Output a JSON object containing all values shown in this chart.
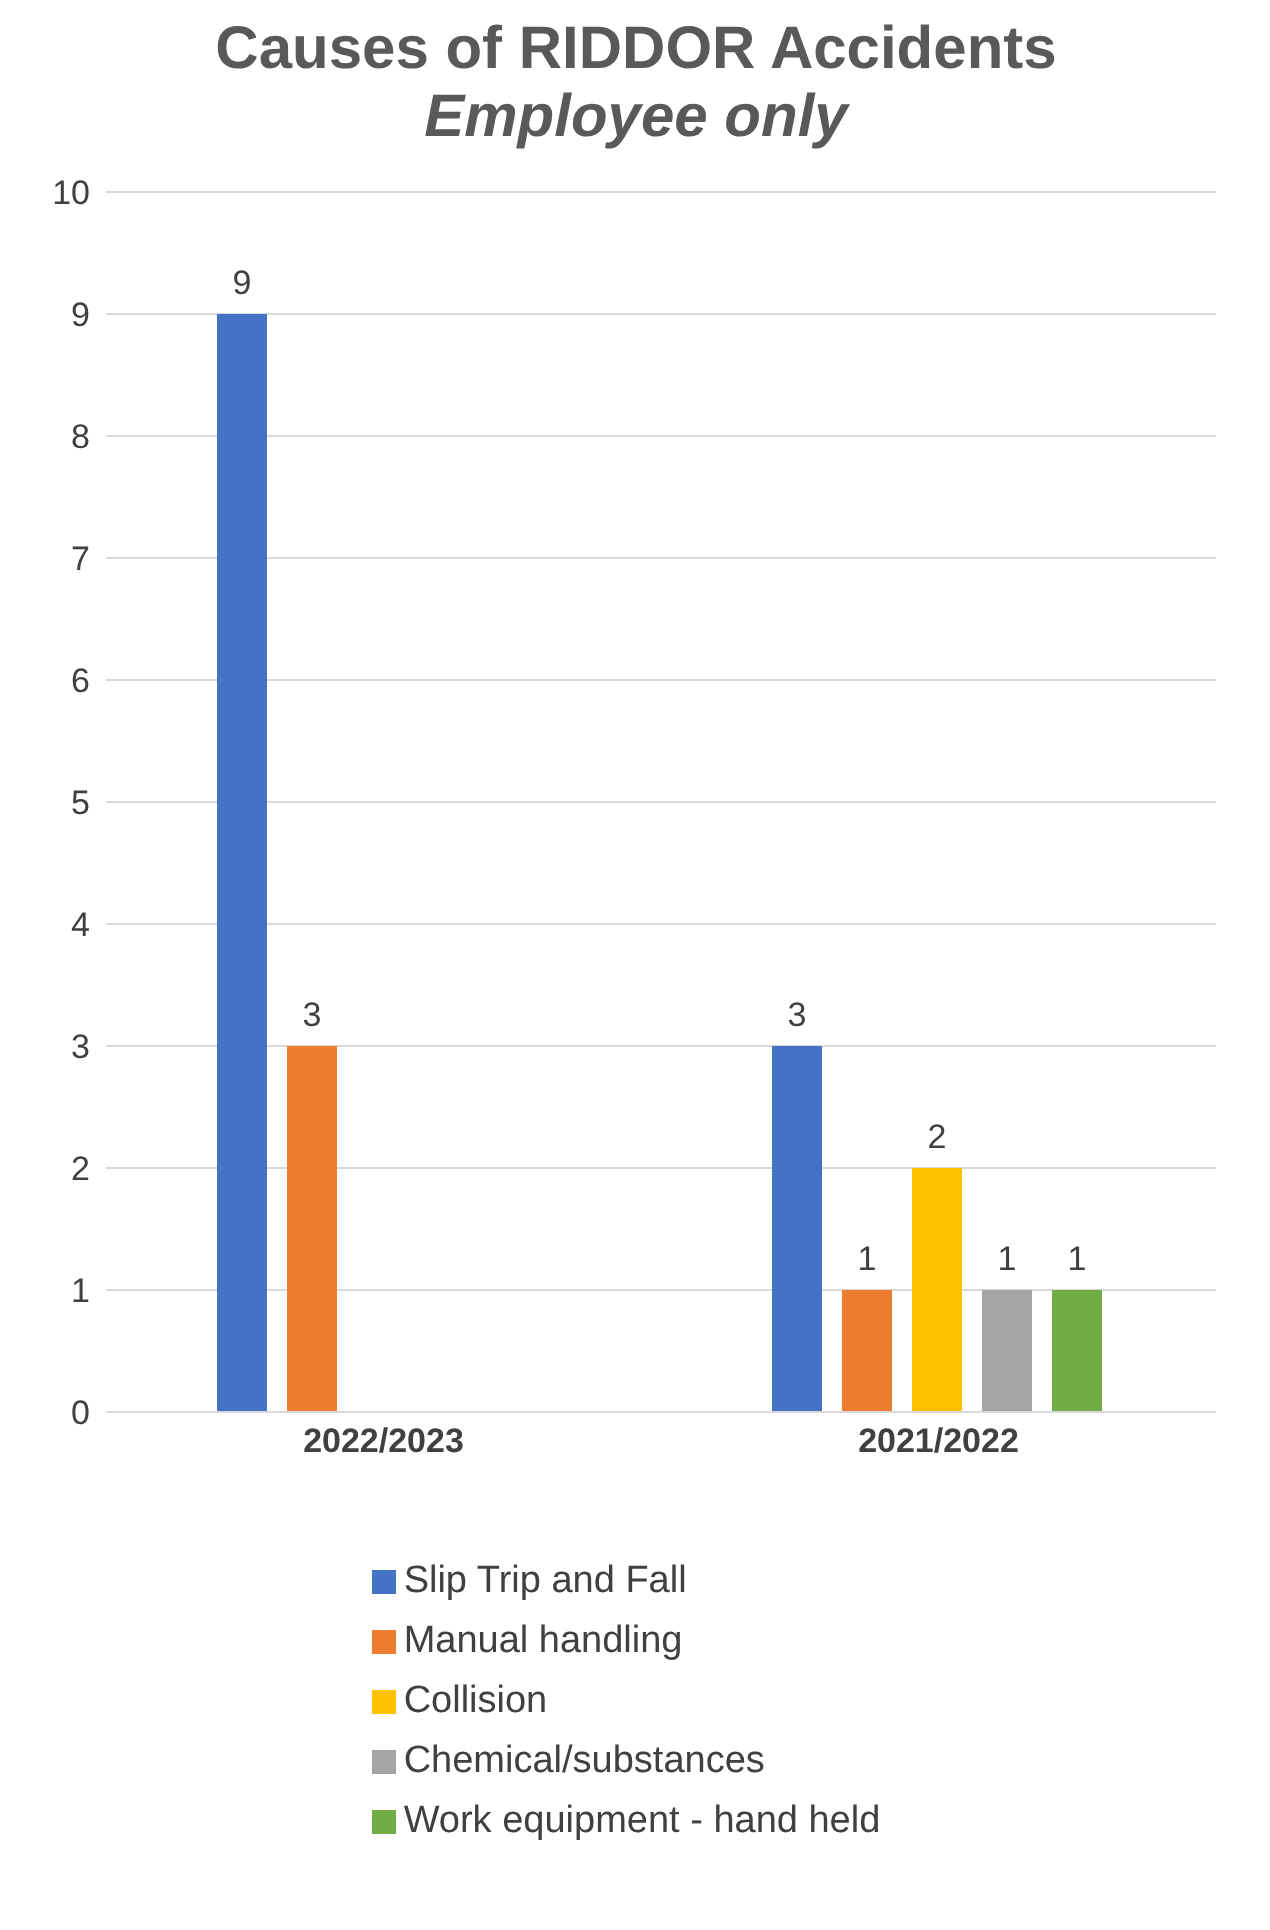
{
  "chart_data": {
    "type": "bar",
    "title": "Causes of RIDDOR Accidents",
    "subtitle": "Employee only",
    "categories": [
      "2022/2023",
      "2021/2022"
    ],
    "series": [
      {
        "name": "Slip Trip and Fall",
        "color": "#4472c4",
        "values": [
          9,
          3
        ]
      },
      {
        "name": "Manual handling",
        "color": "#ed7d31",
        "values": [
          3,
          1
        ]
      },
      {
        "name": "Collision",
        "color": "#ffc000",
        "values": [
          null,
          2
        ]
      },
      {
        "name": "Chemical/substances",
        "color": "#a5a5a5",
        "values": [
          null,
          1
        ]
      },
      {
        "name": "Work equipment - hand held",
        "color": "#70ad47",
        "values": [
          null,
          1
        ]
      }
    ],
    "ylim": [
      0,
      10
    ],
    "yticks": [
      0,
      1,
      2,
      3,
      4,
      5,
      6,
      7,
      8,
      9,
      10
    ],
    "grid": "y",
    "legend": "bottom",
    "data_labels": true
  }
}
